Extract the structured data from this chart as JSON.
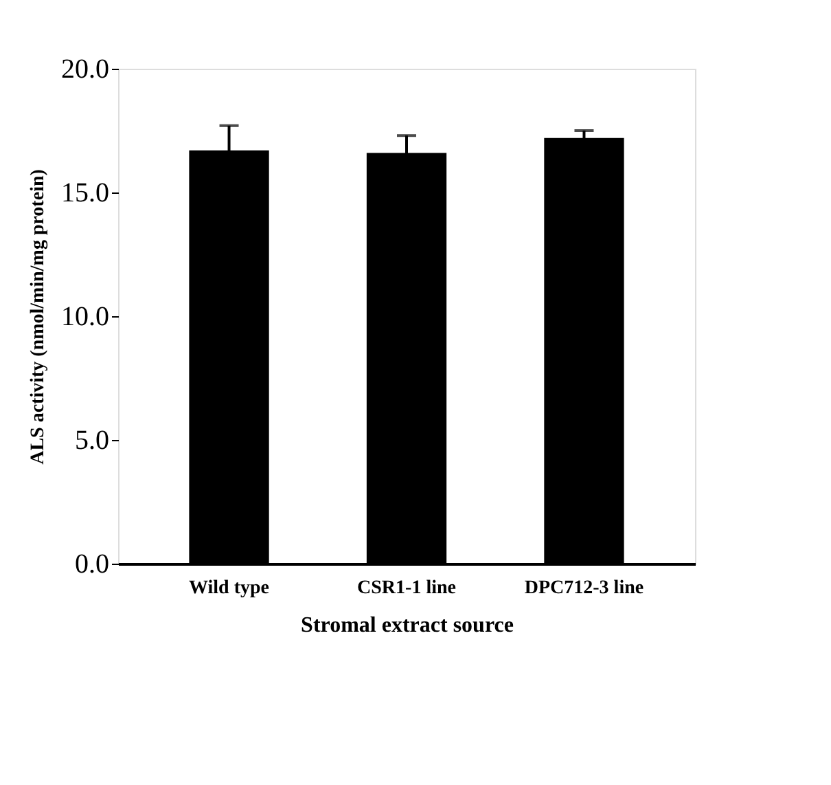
{
  "chart_data": {
    "type": "bar",
    "xlabel": "Stromal extract source",
    "ylabel": "ALS activity (nmol/min/mg protein)",
    "categories": [
      "Wild type",
      "CSR1-1 line",
      "DPC712-3 line"
    ],
    "values": [
      16.7,
      16.6,
      17.2
    ],
    "errors": [
      1.0,
      0.7,
      0.3
    ],
    "color": "#000000",
    "ylim": [
      0,
      20
    ],
    "yticks": [
      {
        "value": 0,
        "label": "0.0"
      },
      {
        "value": 5,
        "label": "5.0"
      },
      {
        "value": 10,
        "label": "10.0"
      },
      {
        "value": 15,
        "label": "15.0"
      },
      {
        "value": 20,
        "label": "20.0"
      }
    ],
    "grid": false
  }
}
